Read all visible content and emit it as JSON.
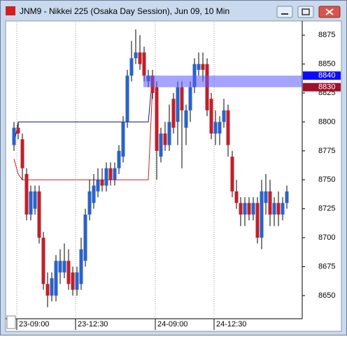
{
  "chart_data": {
    "type": "candlestick",
    "title": "JNM9 - Nikkei 225 (Osaka Day Session), Jun 09, 10 Min",
    "categories": [
      null,
      "23-09:00",
      null,
      null,
      null,
      null,
      null,
      null,
      null,
      null,
      null,
      null,
      null,
      null,
      null,
      "23-12:30",
      null,
      null,
      null,
      null,
      null,
      null,
      null,
      null,
      null,
      null,
      null,
      null,
      null,
      null,
      null,
      null,
      null,
      null,
      "24-09:00",
      null,
      null,
      null,
      null,
      null,
      null,
      null,
      null,
      null,
      null,
      null,
      null,
      null,
      "24-12:30",
      null,
      null,
      null,
      null,
      null,
      null,
      null,
      null,
      null,
      null,
      null,
      null,
      null,
      null,
      null,
      null,
      null
    ],
    "open": [
      8780,
      8795,
      8785,
      8755,
      8720,
      8725,
      8740,
      8700,
      8660,
      8650,
      8650,
      8670,
      8670,
      8680,
      8670,
      8655,
      8660,
      8680,
      8720,
      8730,
      8740,
      8750,
      8745,
      8760,
      8750,
      8760,
      8770,
      8800,
      8840,
      8855,
      8860,
      8860,
      8835,
      8840,
      8830,
      8770,
      8790,
      8780,
      8820,
      8800,
      8830,
      8795,
      8810,
      8830,
      8845,
      8850,
      8850,
      8820,
      8790,
      8790,
      8800,
      8810,
      8770,
      8740,
      8730,
      8720,
      8730,
      8720,
      8730,
      8700,
      8730,
      8740,
      8720,
      8730,
      8720,
      8730
    ],
    "high": [
      8800,
      8800,
      8790,
      8760,
      8745,
      8745,
      8745,
      8705,
      8670,
      8670,
      8685,
      8690,
      8695,
      8690,
      8675,
      8675,
      8700,
      8725,
      8750,
      8755,
      8760,
      8760,
      8765,
      8765,
      8765,
      8780,
      8805,
      8845,
      8870,
      8880,
      8875,
      8865,
      8845,
      8845,
      8835,
      8795,
      8800,
      8815,
      8825,
      8835,
      8835,
      8815,
      8835,
      8855,
      8860,
      8860,
      8855,
      8825,
      8810,
      8805,
      8820,
      8815,
      8775,
      8750,
      8735,
      8735,
      8735,
      8735,
      8735,
      8750,
      8755,
      8750,
      8735,
      8740,
      8735,
      8745
    ],
    "low": [
      8775,
      8785,
      8750,
      8715,
      8715,
      8720,
      8695,
      8655,
      8640,
      8645,
      8645,
      8660,
      8665,
      8655,
      8650,
      8650,
      8655,
      8675,
      8715,
      8725,
      8735,
      8740,
      8740,
      8745,
      8745,
      8755,
      8765,
      8795,
      8835,
      8850,
      8845,
      8835,
      8830,
      8820,
      8750,
      8765,
      8775,
      8775,
      8790,
      8780,
      8760,
      8780,
      8800,
      8825,
      8840,
      8835,
      8805,
      8785,
      8780,
      8780,
      8795,
      8770,
      8735,
      8725,
      8710,
      8710,
      8715,
      8715,
      8695,
      8690,
      8720,
      8710,
      8710,
      8710,
      8715,
      8725
    ],
    "close": [
      8795,
      8790,
      8760,
      8720,
      8740,
      8740,
      8700,
      8660,
      8650,
      8665,
      8680,
      8680,
      8680,
      8660,
      8655,
      8670,
      8690,
      8720,
      8740,
      8745,
      8750,
      8745,
      8760,
      8750,
      8760,
      8775,
      8800,
      8840,
      8855,
      8860,
      8850,
      8840,
      8840,
      8825,
      8775,
      8790,
      8780,
      8800,
      8795,
      8830,
      8810,
      8810,
      8830,
      8850,
      8850,
      8845,
      8810,
      8790,
      8800,
      8800,
      8810,
      8780,
      8740,
      8730,
      8720,
      8730,
      8720,
      8730,
      8700,
      8740,
      8740,
      8720,
      8730,
      8720,
      8730,
      8740
    ],
    "up_color": "#2a62c8",
    "down_color": "#c0202a",
    "series": [
      {
        "color": "#1a1a8c",
        "values": [
          8780,
          8800,
          8800,
          8800,
          8800,
          8800,
          8800,
          8800,
          8800,
          8800,
          8800,
          8800,
          8800,
          8800,
          8800,
          8800,
          8800,
          8800,
          8800,
          8800,
          8800,
          8800,
          8800,
          8800,
          8800,
          8800,
          8800,
          8800,
          8800,
          8800,
          8800,
          8800,
          8800,
          8840,
          null,
          null,
          null,
          null,
          null,
          null,
          null,
          null,
          null,
          null,
          null,
          null,
          null,
          null,
          null,
          null,
          null,
          null,
          null,
          null,
          null,
          null,
          null,
          null,
          null,
          null,
          null,
          null,
          null,
          null,
          null,
          null
        ]
      },
      {
        "color": "#d02020",
        "values": [
          8768,
          8755,
          8750,
          8750,
          8750,
          8750,
          8750,
          8750,
          8750,
          8750,
          8750,
          8750,
          8750,
          8750,
          8750,
          8750,
          8750,
          8750,
          8750,
          8750,
          8750,
          8750,
          8750,
          8750,
          8750,
          8750,
          8750,
          8750,
          8750,
          8750,
          8750,
          8750,
          8750,
          8830,
          null,
          null,
          null,
          null,
          null,
          null,
          null,
          null,
          null,
          null,
          null,
          null,
          null,
          null,
          null,
          null,
          null,
          null,
          null,
          null,
          null,
          null,
          null,
          null,
          null,
          null,
          null,
          null,
          null,
          null,
          null,
          null
        ]
      }
    ],
    "price_markers": [
      {
        "value": 8840,
        "color": "#0a0aff"
      },
      {
        "value": 8830,
        "color": "#a0102a"
      }
    ],
    "ylim": [
      8630,
      8886
    ],
    "yticks": [
      8650,
      8675,
      8700,
      8725,
      8750,
      8775,
      8800,
      8825,
      8850,
      8875
    ]
  }
}
